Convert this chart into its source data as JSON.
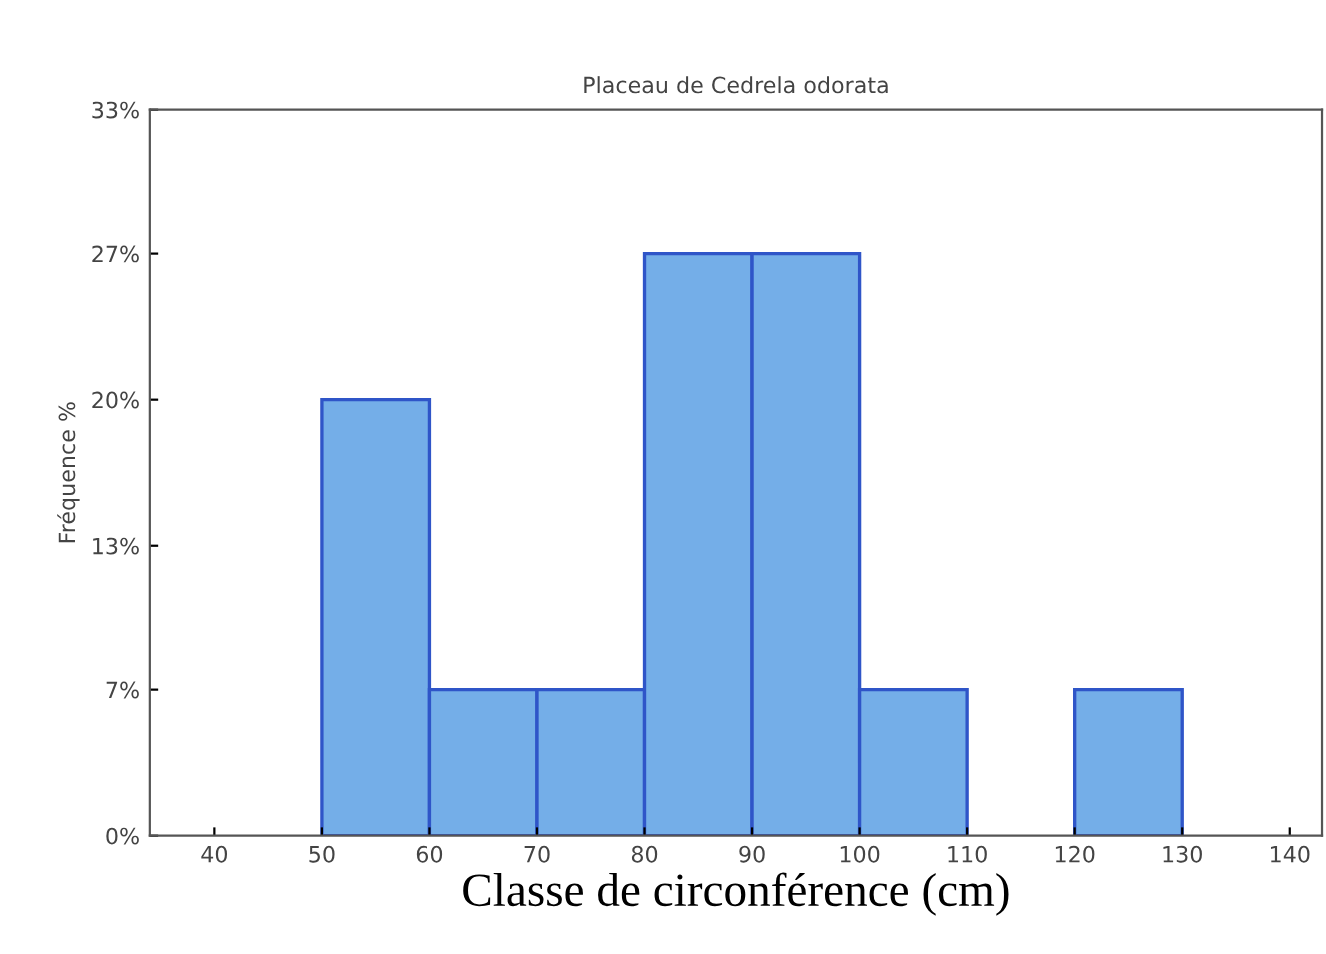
{
  "chart_data": {
    "type": "histogram",
    "title": "Placeau de Cedrela odorata",
    "xlabel": "Classe de circonférence (cm)",
    "ylabel": "Fréquence %",
    "bins": [
      50,
      60,
      70,
      80,
      90,
      100,
      110,
      120,
      130
    ],
    "values": [
      20,
      6.7,
      6.7,
      26.7,
      26.7,
      6.7,
      0,
      6.7
    ],
    "color": "#74aee8",
    "xlim": [
      34,
      143
    ],
    "xticks": [
      40,
      50,
      60,
      70,
      80,
      90,
      100,
      110,
      120,
      130,
      140
    ],
    "ylim": [
      0,
      33.3
    ],
    "yticks": [
      {
        "value": 0,
        "label": "0%"
      },
      {
        "value": 6.7,
        "label": "7%"
      },
      {
        "value": 13.3,
        "label": "13%"
      },
      {
        "value": 20,
        "label": "20%"
      },
      {
        "value": 26.7,
        "label": "27%"
      },
      {
        "value": 33.3,
        "label": "33%"
      }
    ],
    "grid": false
  }
}
